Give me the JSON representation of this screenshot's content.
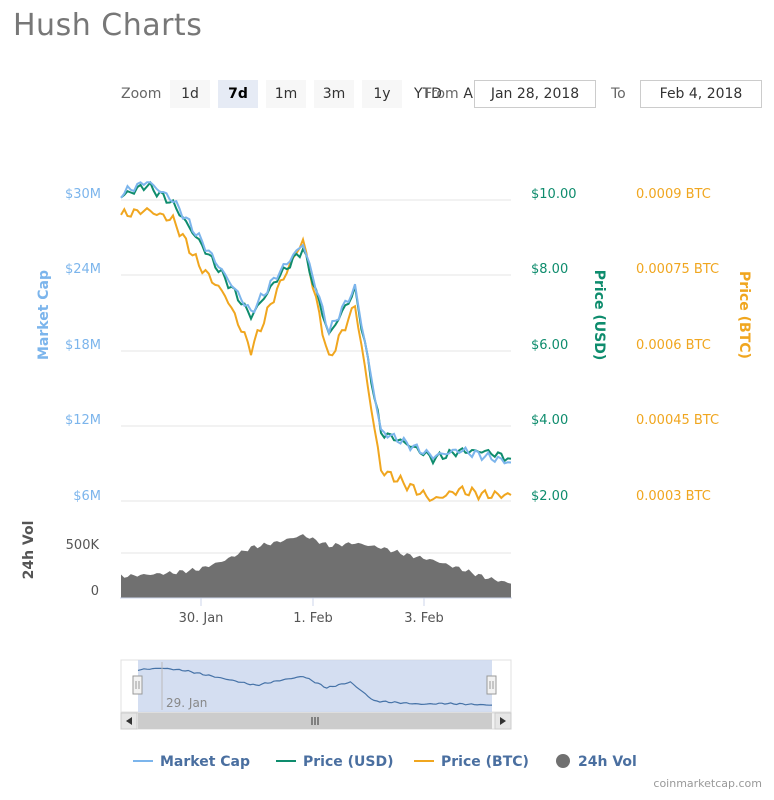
{
  "title": "Hush Charts",
  "toolbar": {
    "zoom_label": "Zoom",
    "buttons": [
      "1d",
      "7d",
      "1m",
      "3m",
      "1y",
      "YTD",
      "ALL"
    ],
    "active": "7d",
    "from_label": "From",
    "from_value": "Jan 28, 2018",
    "to_label": "To",
    "to_value": "Feb 4, 2018"
  },
  "colors": {
    "market_cap": "#7cb5ec",
    "price_usd": "#0e8c6d",
    "price_btc": "#f0a61f",
    "volume": "#707070",
    "navigator_fill": "#c9d6ee",
    "navigator_line": "#4572a7"
  },
  "axes": {
    "market_cap_label": "Market Cap",
    "market_cap_ticks": [
      "$30M",
      "$24M",
      "$18M",
      "$12M",
      "$6M"
    ],
    "price_usd_label": "Price (USD)",
    "price_usd_ticks": [
      "$10.00",
      "$8.00",
      "$6.00",
      "$4.00",
      "$2.00"
    ],
    "price_btc_label": "Price (BTC)",
    "price_btc_ticks": [
      "0.0009 BTC",
      "0.00075 BTC",
      "0.0006 BTC",
      "0.00045 BTC",
      "0.0003 BTC"
    ],
    "volume_label": "24h Vol",
    "volume_ticks": [
      "500K",
      "0"
    ],
    "x_ticks": [
      "30. Jan",
      "1. Feb",
      "3. Feb"
    ],
    "navigator_tick": "29. Jan"
  },
  "legend": [
    {
      "label": "Market Cap",
      "symbol": "line"
    },
    {
      "label": "Price (USD)",
      "symbol": "line"
    },
    {
      "label": "Price (BTC)",
      "symbol": "line"
    },
    {
      "label": "24h Vol",
      "symbol": "circle"
    }
  ],
  "credits": "coinmarketcap.com",
  "chart_data": {
    "type": "line",
    "x": [
      "2018-01-28",
      "2018-01-28 12:00",
      "2018-01-29",
      "2018-01-29 12:00",
      "2018-01-30",
      "2018-01-30 12:00",
      "2018-01-31",
      "2018-01-31 12:00",
      "2018-02-01",
      "2018-02-01 12:00",
      "2018-02-02",
      "2018-02-02 12:00",
      "2018-02-03",
      "2018-02-03 12:00",
      "2018-02-04",
      "2018-02-04 12:00"
    ],
    "series": [
      {
        "name": "Market Cap",
        "axis": "market_cap",
        "values": [
          30.5,
          31.5,
          30.0,
          27.0,
          24.0,
          21.0,
          24.0,
          26.5,
          19.5,
          23.0,
          11.5,
          10.5,
          9.5,
          10.0,
          9.5,
          9.0
        ]
      },
      {
        "name": "Price (USD)",
        "axis": "usd",
        "values": [
          10.1,
          10.4,
          9.9,
          8.9,
          7.9,
          6.9,
          7.9,
          8.7,
          6.4,
          7.6,
          3.8,
          3.5,
          3.1,
          3.3,
          3.3,
          3.1
        ]
      },
      {
        "name": "Price (BTC)",
        "axis": "btc",
        "values": [
          0.00087,
          0.00088,
          0.00086,
          0.00077,
          0.00071,
          0.0006,
          0.00072,
          0.00082,
          0.00058,
          0.00069,
          0.00036,
          0.00033,
          0.0003,
          0.00032,
          0.00031,
          0.00031
        ]
      },
      {
        "name": "24h Vol",
        "axis": "volume",
        "values": [
          240000,
          260000,
          280000,
          320000,
          420000,
          560000,
          620000,
          700000,
          580000,
          610000,
          560000,
          480000,
          420000,
          330000,
          230000,
          160000
        ]
      }
    ],
    "ylim_market_cap": [
      6,
      30
    ],
    "ylim_usd": [
      2,
      10
    ],
    "ylim_btc": [
      0.0003,
      0.0009
    ],
    "ylim_volume": [
      0,
      500000
    ],
    "grid": true,
    "legend_position": "bottom"
  }
}
